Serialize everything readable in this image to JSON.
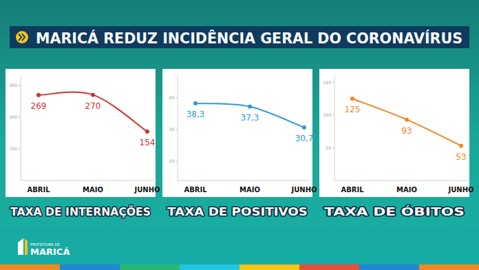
{
  "header": {
    "title": "MARICÁ REDUZ INCIDÊNCIA GERAL DO CORONAVÍRUS"
  },
  "chart_data": [
    {
      "type": "line",
      "title": "TAXA DE INTERNAÇÕES",
      "categories": [
        "ABRIL",
        "MAIO",
        "JUNHO"
      ],
      "values": [
        269,
        270,
        154
      ],
      "color": "#d32f2f",
      "ylim": [
        0,
        330
      ],
      "yticks": [
        100,
        200,
        300
      ],
      "grid": false,
      "data_labels": true,
      "marker": "circle"
    },
    {
      "type": "line",
      "title": "TAXA DE POSITIVOS",
      "categories": [
        "ABRIL",
        "MAIO",
        "JUNHO"
      ],
      "values": [
        38.3,
        37.3,
        30.7
      ],
      "value_labels": [
        "38,3",
        "37,3",
        "30,7"
      ],
      "color": "#2e9ad6",
      "ylim": [
        14,
        47
      ],
      "yticks": [
        20,
        30,
        40
      ],
      "grid": false,
      "data_labels": true,
      "marker": "circle"
    },
    {
      "type": "line",
      "title": "TAXA DE ÓBITOS",
      "categories": [
        "ABRIL",
        "MAIO",
        "JUNHO"
      ],
      "values": [
        125,
        93,
        53
      ],
      "color": "#f0871e",
      "ylim": [
        0,
        160
      ],
      "yticks": [
        50,
        100,
        150
      ],
      "grid": false,
      "data_labels": true,
      "marker": "circle"
    }
  ],
  "logo": {
    "top": "PREFEITURA DE",
    "name": "MARICÁ"
  }
}
